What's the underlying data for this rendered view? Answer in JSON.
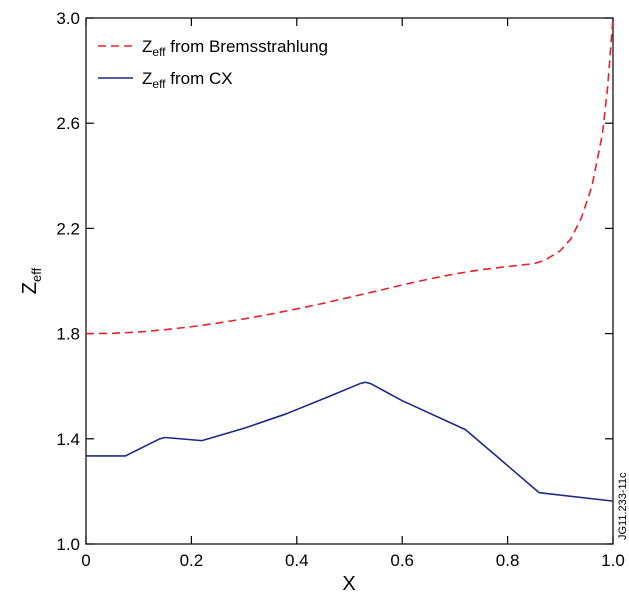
{
  "chart_data": {
    "type": "line",
    "xlabel": "X",
    "ylabel": {
      "main": "Z",
      "sub": "eff"
    },
    "xlim": [
      0,
      1.0
    ],
    "ylim": [
      1.0,
      3.0
    ],
    "xticks": [
      0,
      0.2,
      0.4,
      0.6,
      0.8,
      1.0
    ],
    "xtick_labels": [
      "0",
      "0.2",
      "0.4",
      "0.6",
      "0.8",
      "1.0"
    ],
    "yticks": [
      1.0,
      1.4,
      1.8,
      2.2,
      2.6,
      3.0
    ],
    "ytick_labels": [
      "1.0",
      "1.4",
      "1.8",
      "2.2",
      "2.6",
      "3.0"
    ],
    "grid": false,
    "legend_position": "top-left",
    "series": [
      {
        "legend_main": "Z",
        "legend_sub": "eff",
        "legend_rest": " from Bremsstrahlung",
        "color": "#e8202a",
        "dash": "dashed",
        "x": [
          0,
          0.05,
          0.1,
          0.15,
          0.2,
          0.25,
          0.3,
          0.35,
          0.4,
          0.45,
          0.5,
          0.55,
          0.6,
          0.65,
          0.7,
          0.75,
          0.8,
          0.85,
          0.87,
          0.9,
          0.92,
          0.94,
          0.96,
          0.98,
          0.99,
          1.0
        ],
        "y": [
          1.8,
          1.801,
          1.806,
          1.815,
          1.826,
          1.84,
          1.856,
          1.874,
          1.894,
          1.915,
          1.938,
          1.961,
          1.985,
          2.007,
          2.027,
          2.043,
          2.055,
          2.066,
          2.078,
          2.115,
          2.16,
          2.24,
          2.36,
          2.56,
          2.74,
          3.0
        ]
      },
      {
        "legend_main": "Z",
        "legend_sub": "eff",
        "legend_rest": " from CX",
        "color": "#1d2a85",
        "dash": "solid",
        "x": [
          0,
          0.075,
          0.14,
          0.15,
          0.22,
          0.3,
          0.38,
          0.46,
          0.52,
          0.53,
          0.54,
          0.6,
          0.72,
          0.86,
          1.0
        ],
        "y": [
          1.335,
          1.335,
          1.4,
          1.405,
          1.393,
          1.44,
          1.495,
          1.56,
          1.61,
          1.615,
          1.61,
          1.545,
          1.435,
          1.195,
          1.163
        ]
      }
    ]
  },
  "side_note": "JG11.233-11c"
}
